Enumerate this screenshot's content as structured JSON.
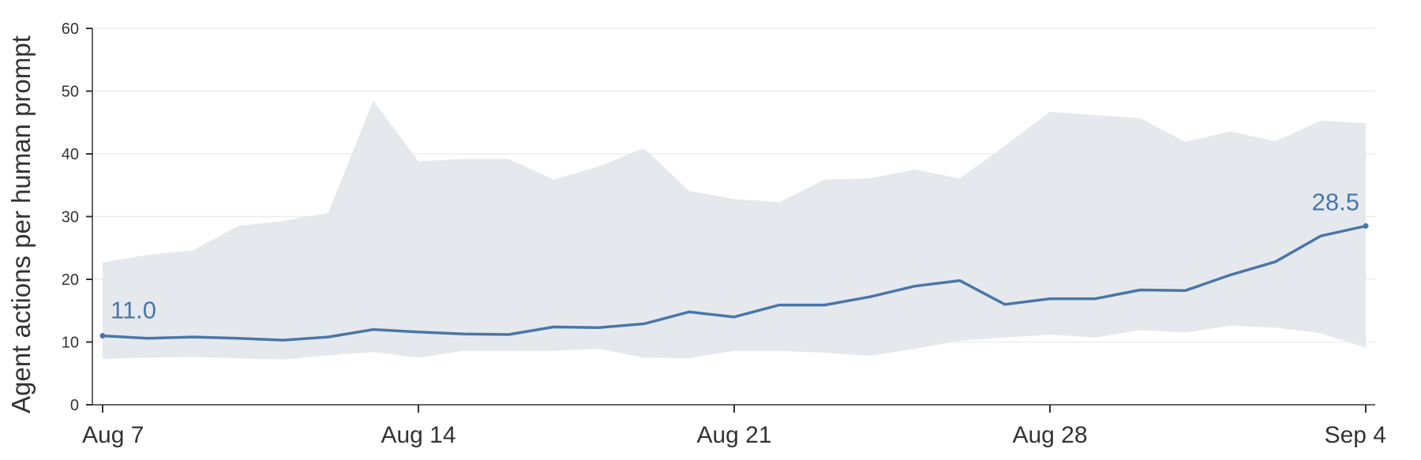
{
  "chart_data": {
    "type": "line",
    "title": "",
    "xlabel": "",
    "ylabel": "Agent actions per human prompt",
    "ylim": [
      0,
      60
    ],
    "yticks": [
      "0",
      "10",
      "20",
      "30",
      "40",
      "50",
      "60"
    ],
    "x_tick_labels": [
      "Aug 7",
      "Aug 14",
      "Aug 21",
      "Aug 28",
      "Sep 4"
    ],
    "x": [
      "Aug 7",
      "Aug 8",
      "Aug 9",
      "Aug 10",
      "Aug 11",
      "Aug 12",
      "Aug 13",
      "Aug 14",
      "Aug 15",
      "Aug 16",
      "Aug 17",
      "Aug 18",
      "Aug 19",
      "Aug 20",
      "Aug 21",
      "Aug 22",
      "Aug 23",
      "Aug 24",
      "Aug 25",
      "Aug 26",
      "Aug 27",
      "Aug 28",
      "Aug 29",
      "Aug 30",
      "Aug 31",
      "Sep 1",
      "Sep 2",
      "Sep 3",
      "Sep 4"
    ],
    "series": [
      {
        "values": [
          11.0,
          10.6,
          10.8,
          10.6,
          10.3,
          10.8,
          12.0,
          11.6,
          11.3,
          11.2,
          12.4,
          12.3,
          12.9,
          14.8,
          14.0,
          15.9,
          15.9,
          17.2,
          18.9,
          19.8,
          16.0,
          16.9,
          16.9,
          18.3,
          18.2,
          20.7,
          22.8,
          26.9,
          28.5
        ],
        "band_upper": [
          22.7,
          23.9,
          24.6,
          28.5,
          29.3,
          30.6,
          48.5,
          38.8,
          39.2,
          39.2,
          35.9,
          38.0,
          40.9,
          34.1,
          32.8,
          32.3,
          35.9,
          36.1,
          37.5,
          36.1,
          41.3,
          46.7,
          46.2,
          45.7,
          41.9,
          43.6,
          42.0,
          45.3,
          44.9
        ],
        "band_lower": [
          7.3,
          7.5,
          7.6,
          7.4,
          7.2,
          7.9,
          8.4,
          7.5,
          8.6,
          8.6,
          8.6,
          8.9,
          7.5,
          7.4,
          8.6,
          8.6,
          8.3,
          7.8,
          8.9,
          10.2,
          10.7,
          11.2,
          10.7,
          11.9,
          11.5,
          12.6,
          12.3,
          11.4,
          9.1
        ]
      }
    ],
    "annotations": {
      "start_label": "11.0",
      "end_label": "28.5"
    },
    "colors": {
      "line": "#4a76a8",
      "band": "#e5e9ee",
      "annotation": "#4a76a8"
    },
    "grid": true,
    "legend": "none"
  }
}
